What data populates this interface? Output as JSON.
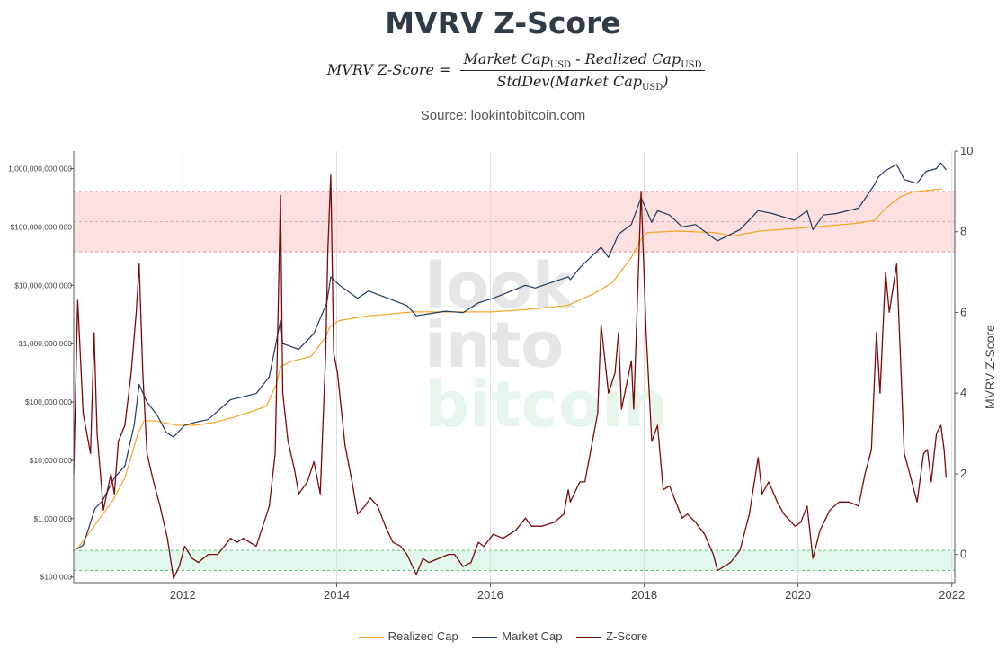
{
  "page": {
    "title": "MVRV Z-Score",
    "source": "Source: lookintobitcoin.com",
    "watermark": [
      "look",
      "into",
      "bitcoin"
    ]
  },
  "formula": {
    "lhs": "MVRV Z-Score",
    "equals": "=",
    "num_a": "Market Cap",
    "num_op": " - ",
    "num_b": "Realized Cap",
    "den_a": "StdDev(Market Cap",
    "den_close": ")",
    "sub": "USD"
  },
  "chart_data": {
    "type": "line",
    "x_range": [
      "2010-08-01",
      "2022-01-15"
    ],
    "x_ticks": [
      "2012",
      "2014",
      "2016",
      "2018",
      "2020",
      "2022"
    ],
    "y_left": {
      "scale": "log",
      "range": [
        80000,
        2000000000000
      ],
      "ticks": [
        100000,
        1000000,
        10000000,
        100000000,
        1000000000,
        10000000000,
        100000000000,
        1000000000000
      ],
      "tick_labels": [
        "$100,000",
        "$1,000,000",
        "$10,000,000",
        "$100,000,000",
        "$1,000,000,000",
        "$10,000,000,000",
        "$100,000,000,000",
        "1,000,000,000,000"
      ]
    },
    "y_right": {
      "label": "MVRV Z-Score",
      "range": [
        -0.7,
        10
      ],
      "ticks": [
        0,
        2,
        4,
        6,
        8,
        10
      ],
      "tick_labels": [
        "0",
        "2",
        "4",
        "6",
        "8",
        "10"
      ]
    },
    "zones": [
      {
        "name": "high",
        "from": 7.5,
        "to": 9.0,
        "mid": 8.25,
        "color": "#fde1e1",
        "border": "#e58a8a"
      },
      {
        "name": "low",
        "from": -0.4,
        "to": 0.1,
        "color": "#e3f8ec",
        "border": "#5bbf7f"
      }
    ],
    "legend_placement": "bottom",
    "series": [
      {
        "name": "Realized Cap",
        "color": "#f5a623",
        "axis": "left",
        "x": [
          "2010-08-15",
          "2010-10-01",
          "2010-12-01",
          "2011-02-01",
          "2011-04-01",
          "2011-06-01",
          "2011-07-01",
          "2011-09-01",
          "2011-12-01",
          "2012-03-01",
          "2012-06-01",
          "2012-09-01",
          "2012-12-01",
          "2013-02-01",
          "2013-03-20",
          "2013-04-10",
          "2013-06-01",
          "2013-09-01",
          "2013-11-10",
          "2013-12-01",
          "2014-01-15",
          "2014-06-01",
          "2015-01-01",
          "2015-06-01",
          "2016-01-01",
          "2016-06-01",
          "2017-01-01",
          "2017-05-01",
          "2017-08-01",
          "2017-11-01",
          "2017-12-15",
          "2018-01-15",
          "2018-06-01",
          "2018-12-01",
          "2019-03-01",
          "2019-07-01",
          "2020-01-01",
          "2020-06-01",
          "2020-10-01",
          "2021-01-01",
          "2021-02-15",
          "2021-05-01",
          "2021-07-01",
          "2021-11-15"
        ],
        "values": [
          300000,
          500000,
          1000000,
          2000000,
          5000000,
          28000000,
          48000000,
          47000000,
          40000000,
          40000000,
          45000000,
          55000000,
          70000000,
          85000000,
          200000000,
          400000000,
          500000000,
          600000000,
          1300000000,
          2000000000,
          2500000000,
          3000000000,
          3500000000,
          3500000000,
          3500000000,
          3800000000,
          4500000000,
          7000000000,
          11000000000,
          30000000000,
          60000000000,
          80000000000,
          85000000000,
          80000000000,
          70000000000,
          85000000000,
          95000000000,
          105000000000,
          115000000000,
          130000000000,
          200000000000,
          330000000000,
          400000000000,
          450000000000
        ]
      },
      {
        "name": "Market Cap",
        "color": "#1f3a5f",
        "axis": "left",
        "x": [
          "2010-08-15",
          "2010-09-15",
          "2010-11-10",
          "2010-12-15",
          "2011-02-10",
          "2011-04-01",
          "2011-05-15",
          "2011-06-08",
          "2011-07-15",
          "2011-09-01",
          "2011-10-15",
          "2011-11-18",
          "2012-01-10",
          "2012-03-01",
          "2012-05-01",
          "2012-08-15",
          "2012-10-01",
          "2012-12-15",
          "2013-02-15",
          "2013-04-09",
          "2013-04-20",
          "2013-07-05",
          "2013-09-15",
          "2013-11-15",
          "2013-12-04",
          "2014-01-15",
          "2014-04-10",
          "2014-06-01",
          "2014-09-01",
          "2014-12-01",
          "2015-01-15",
          "2015-06-01",
          "2015-08-25",
          "2015-11-05",
          "2016-01-15",
          "2016-06-15",
          "2016-08-01",
          "2017-01-05",
          "2017-01-15",
          "2017-03-01",
          "2017-06-10",
          "2017-07-15",
          "2017-09-01",
          "2017-11-01",
          "2017-12-17",
          "2018-02-05",
          "2018-03-05",
          "2018-05-01",
          "2018-06-30",
          "2018-09-01",
          "2018-11-25",
          "2018-12-15",
          "2019-04-01",
          "2019-06-26",
          "2019-09-01",
          "2019-12-15",
          "2020-02-14",
          "2020-03-12",
          "2020-05-01",
          "2020-07-01",
          "2020-10-15",
          "2020-12-31",
          "2021-01-15",
          "2021-02-15",
          "2021-04-14",
          "2021-05-20",
          "2021-07-20",
          "2021-09-01",
          "2021-10-20",
          "2021-11-10",
          "2021-12-05"
        ],
        "values": [
          300000,
          350000,
          1500000,
          2000000,
          5000000,
          8000000,
          40000000,
          200000000,
          100000000,
          60000000,
          30000000,
          25000000,
          40000000,
          45000000,
          50000000,
          110000000,
          120000000,
          140000000,
          270000000,
          2500000000,
          1000000000,
          800000000,
          1500000000,
          5000000000,
          14000000000,
          10000000000,
          6000000000,
          8000000000,
          6000000000,
          4500000000,
          3000000000,
          3600000000,
          3400000000,
          5000000000,
          6000000000,
          10000000000,
          9000000000,
          14000000000,
          12500000000,
          20000000000,
          45000000000,
          30000000000,
          75000000000,
          110000000000,
          320000000000,
          120000000000,
          190000000000,
          160000000000,
          100000000000,
          110000000000,
          65000000000,
          58000000000,
          90000000000,
          190000000000,
          170000000000,
          130000000000,
          190000000000,
          90000000000,
          160000000000,
          170000000000,
          210000000000,
          540000000000,
          700000000000,
          900000000000,
          1180000000000,
          650000000000,
          560000000000,
          900000000000,
          1000000000000,
          1250000000000,
          950000000000
        ]
      },
      {
        "name": "Z-Score",
        "color": "#7a0a0a",
        "axis": "right",
        "x": [
          "2010-08-01",
          "2010-08-20",
          "2010-09-15",
          "2010-10-20",
          "2010-11-06",
          "2010-11-20",
          "2010-12-20",
          "2011-01-25",
          "2011-02-10",
          "2011-03-01",
          "2011-04-01",
          "2011-05-01",
          "2011-05-25",
          "2011-06-08",
          "2011-06-25",
          "2011-07-15",
          "2011-08-15",
          "2011-09-15",
          "2011-10-20",
          "2011-11-18",
          "2011-12-15",
          "2012-01-10",
          "2012-02-15",
          "2012-03-15",
          "2012-05-01",
          "2012-06-15",
          "2012-08-15",
          "2012-09-15",
          "2012-10-15",
          "2012-12-15",
          "2013-01-15",
          "2013-02-15",
          "2013-03-15",
          "2013-04-09",
          "2013-04-20",
          "2013-05-15",
          "2013-06-15",
          "2013-07-05",
          "2013-08-15",
          "2013-09-15",
          "2013-10-15",
          "2013-11-10",
          "2013-11-20",
          "2013-12-04",
          "2013-12-18",
          "2014-01-05",
          "2014-02-10",
          "2014-03-15",
          "2014-04-10",
          "2014-05-15",
          "2014-06-10",
          "2014-07-15",
          "2014-08-20",
          "2014-09-25",
          "2014-11-01",
          "2014-12-01",
          "2015-01-14",
          "2015-02-15",
          "2015-03-15",
          "2015-05-01",
          "2015-06-15",
          "2015-07-15",
          "2015-08-25",
          "2015-10-01",
          "2015-11-05",
          "2015-12-01",
          "2016-01-15",
          "2016-03-01",
          "2016-05-01",
          "2016-06-16",
          "2016-07-15",
          "2016-09-01",
          "2016-11-01",
          "2016-12-15",
          "2017-01-05",
          "2017-01-15",
          "2017-03-01",
          "2017-03-25",
          "2017-05-25",
          "2017-06-10",
          "2017-07-15",
          "2017-08-15",
          "2017-09-01",
          "2017-09-15",
          "2017-11-01",
          "2017-11-12",
          "2017-12-17",
          "2018-01-10",
          "2018-02-06",
          "2018-03-05",
          "2018-04-01",
          "2018-05-01",
          "2018-06-30",
          "2018-07-25",
          "2018-09-01",
          "2018-10-15",
          "2018-11-25",
          "2018-12-15",
          "2019-01-15",
          "2019-02-15",
          "2019-04-01",
          "2019-05-15",
          "2019-06-26",
          "2019-07-15",
          "2019-08-15",
          "2019-09-25",
          "2019-10-26",
          "2019-12-18",
          "2020-01-15",
          "2020-02-14",
          "2020-03-12",
          "2020-04-15",
          "2020-06-01",
          "2020-07-15",
          "2020-09-01",
          "2020-10-15",
          "2020-11-15",
          "2020-12-15",
          "2021-01-08",
          "2021-01-25",
          "2021-02-20",
          "2021-03-10",
          "2021-04-14",
          "2021-05-01",
          "2021-05-20",
          "2021-06-20",
          "2021-07-20",
          "2021-08-20",
          "2021-09-07",
          "2021-09-25",
          "2021-10-20",
          "2021-11-10",
          "2021-11-25",
          "2021-12-05"
        ],
        "values": [
          2.0,
          6.3,
          3.5,
          2.5,
          5.5,
          3.0,
          1.1,
          2.0,
          1.5,
          2.8,
          3.2,
          4.5,
          6.0,
          7.2,
          4.5,
          2.5,
          1.8,
          1.2,
          0.4,
          -0.6,
          -0.3,
          0.2,
          -0.1,
          -0.2,
          0.0,
          0.0,
          0.4,
          0.3,
          0.4,
          0.2,
          0.7,
          1.2,
          2.5,
          8.9,
          4.0,
          2.8,
          2.1,
          1.5,
          1.8,
          2.3,
          1.5,
          5.0,
          7.5,
          9.4,
          5.0,
          4.5,
          2.7,
          1.8,
          1.0,
          1.2,
          1.4,
          1.2,
          0.7,
          0.3,
          0.2,
          0.0,
          -0.5,
          -0.1,
          -0.2,
          -0.1,
          0.0,
          0.0,
          -0.3,
          -0.2,
          0.3,
          0.2,
          0.5,
          0.4,
          0.6,
          0.9,
          0.7,
          0.7,
          0.8,
          1.0,
          1.6,
          1.3,
          1.8,
          1.8,
          3.5,
          5.7,
          4.0,
          4.5,
          5.5,
          3.6,
          4.8,
          3.6,
          9.0,
          5.5,
          2.8,
          3.2,
          1.6,
          1.7,
          0.9,
          1.0,
          0.8,
          0.5,
          0.0,
          -0.4,
          -0.3,
          -0.2,
          0.1,
          1.0,
          2.4,
          1.5,
          1.8,
          1.3,
          1.0,
          0.7,
          0.8,
          1.2,
          -0.1,
          0.6,
          1.1,
          1.3,
          1.3,
          1.2,
          2.0,
          2.6,
          5.5,
          4.0,
          7.0,
          6.0,
          7.2,
          5.0,
          2.5,
          1.9,
          1.3,
          2.5,
          2.6,
          1.8,
          3.0,
          3.2,
          2.6,
          1.9
        ]
      }
    ]
  }
}
